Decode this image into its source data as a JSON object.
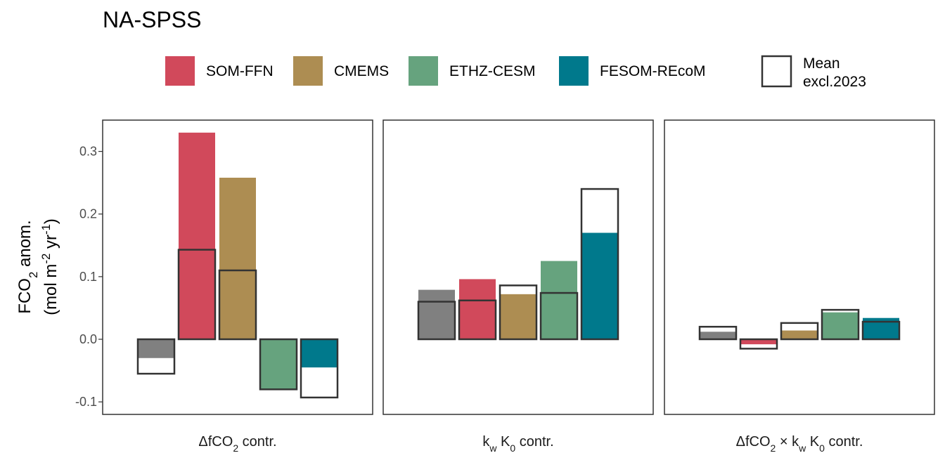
{
  "title": "NA-SPSS",
  "chart_data": {
    "type": "bar",
    "title": "NA-SPSS",
    "ylabel": {
      "line1_main": "FCO",
      "line1_sub": "2",
      "line1_tail": " anom.",
      "line2_a": "(mol m",
      "line2_sup1": "-2",
      "line2_b": " yr",
      "line2_sup2": "-1",
      "line2_c": ")"
    },
    "ylim": [
      -0.12,
      0.35
    ],
    "yticks": [
      -0.1,
      0.0,
      0.1,
      0.2,
      0.3
    ],
    "ytick_labels": [
      "-0.1",
      "0.0",
      "0.1",
      "0.2",
      "0.3"
    ],
    "legend": {
      "position": "top",
      "entries": [
        {
          "name": "SOM-FFN",
          "color": "#D1495B"
        },
        {
          "name": "CMEMS",
          "color": "#AD8D52"
        },
        {
          "name": "ETHZ-CESM",
          "color": "#66A37E"
        },
        {
          "name": "FESOM-REcoM",
          "color": "#00798C"
        }
      ],
      "mean_label_line1": "Mean",
      "mean_label_line2": "excl.2023"
    },
    "series_colors": [
      "#808080",
      "#D1495B",
      "#AD8D52",
      "#66A37E",
      "#00798C"
    ],
    "facets": [
      {
        "label_parts": [
          [
            "Δ",
            "n"
          ],
          [
            "fCO",
            "n"
          ],
          [
            "2",
            "sub"
          ],
          [
            " contr.",
            "n"
          ]
        ],
        "values": [
          -0.03,
          0.33,
          0.258,
          -0.08,
          -0.045
        ],
        "mean": [
          -0.055,
          0.143,
          0.11,
          -0.08,
          -0.093
        ]
      },
      {
        "label_parts": [
          [
            "k",
            "n"
          ],
          [
            "w",
            "sub"
          ],
          [
            " K",
            "n"
          ],
          [
            "0",
            "sub"
          ],
          [
            " contr.",
            "n"
          ]
        ],
        "values": [
          0.079,
          0.096,
          0.072,
          0.125,
          0.17
        ],
        "mean": [
          0.06,
          0.062,
          0.086,
          0.074,
          0.24
        ]
      },
      {
        "label_parts": [
          [
            "Δ",
            "n"
          ],
          [
            "fCO",
            "n"
          ],
          [
            "2",
            "sub"
          ],
          [
            " × k",
            "n"
          ],
          [
            "w",
            "sub"
          ],
          [
            " K",
            "n"
          ],
          [
            "0",
            "sub"
          ],
          [
            " contr.",
            "n"
          ]
        ],
        "values": [
          0.012,
          -0.008,
          0.014,
          0.043,
          0.034
        ],
        "mean": [
          0.02,
          -0.015,
          0.026,
          0.047,
          0.028
        ]
      }
    ]
  }
}
